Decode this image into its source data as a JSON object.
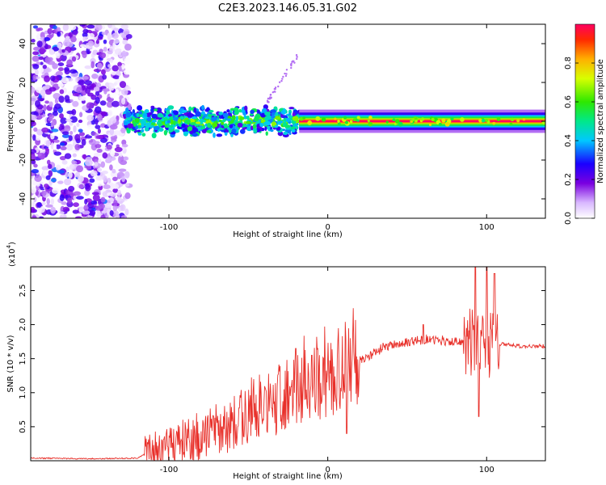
{
  "figure_title": "C2E3.2023.146.05.31.G02",
  "colorbar": {
    "label": "Normalized spectral amplitude",
    "ticks": [
      "0.0",
      "0.2",
      "0.4",
      "0.6",
      "0.8"
    ]
  },
  "chart_data": [
    {
      "type": "heatmap",
      "title": "",
      "xlabel": "Height of straight line (km)",
      "ylabel": "Frequency (Hz)",
      "xlim": [
        -187,
        137
      ],
      "ylim": [
        -50,
        50
      ],
      "x_ticks": [
        -100,
        0,
        100
      ],
      "x_tick_labels": [
        "-100",
        "0",
        "100"
      ],
      "y_ticks": [
        -40,
        -20,
        0,
        20,
        40
      ],
      "y_tick_labels": [
        "-40",
        "-20",
        "0",
        "20",
        "40"
      ],
      "colorscale": "rainbow",
      "zlim": [
        0,
        1
      ],
      "description_regions": [
        {
          "x_range": [
            -187,
            -125
          ],
          "freq_range": [
            -50,
            50
          ],
          "amplitude_level": 0.15
        },
        {
          "x_range": [
            -128,
            -18
          ],
          "freq_range": [
            -8,
            8
          ],
          "amplitude_level": 0.4
        },
        {
          "x_range": [
            -18,
            137
          ],
          "freq_range": [
            -3,
            3
          ],
          "amplitude_level": 1.0
        }
      ],
      "features": [
        {
          "name": "rising streak",
          "x_range": [
            -38,
            -18
          ],
          "freq_range": [
            10,
            35
          ]
        }
      ]
    },
    {
      "type": "line",
      "title": "",
      "xlabel": "Height of straight line (km)",
      "ylabel": "SNR (10 * v/v)",
      "y_multiplier_label": "(x10",
      "y_multiplier_exp": "4",
      "xlim": [
        -187,
        137
      ],
      "ylim": [
        0,
        2.85
      ],
      "x_ticks": [
        -100,
        0,
        100
      ],
      "x_tick_labels": [
        "-100",
        "0",
        "100"
      ],
      "y_ticks": [
        0.5,
        1.0,
        1.5,
        2.0,
        2.5
      ],
      "y_tick_labels": [
        "0.5",
        "1.0",
        "1.5",
        "2.0",
        "2.5"
      ],
      "color": "#e8302a",
      "series": [
        {
          "x": [
            -187,
            -160,
            -140,
            -120,
            -110,
            -100,
            -90,
            -80,
            -70,
            -60,
            -50,
            -40,
            -30,
            -20,
            -10,
            0,
            10,
            20,
            30,
            40,
            50,
            60,
            70,
            80,
            90,
            95,
            100,
            105,
            110,
            120,
            137
          ],
          "y": [
            0.04,
            0.03,
            0.03,
            0.04,
            0.15,
            0.2,
            0.25,
            0.3,
            0.45,
            0.55,
            0.7,
            0.8,
            0.9,
            1.1,
            1.15,
            1.25,
            1.3,
            1.45,
            1.6,
            1.7,
            1.75,
            1.78,
            1.75,
            1.75,
            1.7,
            1.7,
            1.7,
            1.65,
            1.72,
            1.68,
            1.68
          ]
        }
      ],
      "spikes": [
        {
          "x": -20,
          "y": 1.65
        },
        {
          "x": -10,
          "y": 1.55
        },
        {
          "x": 12,
          "y": 0.4
        },
        {
          "x": 60,
          "y": 2.0
        },
        {
          "x": 93,
          "y": 2.85
        },
        {
          "x": 95,
          "y": 0.65
        },
        {
          "x": 100,
          "y": 2.85
        },
        {
          "x": 105,
          "y": 2.75
        }
      ]
    }
  ]
}
